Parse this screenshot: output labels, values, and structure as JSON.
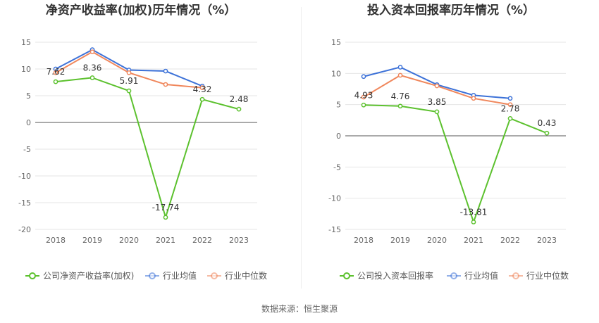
{
  "source": "数据来源：恒生聚源",
  "chart_data": [
    {
      "type": "line",
      "title": "净资产收益率(加权)历年情况（%）",
      "categories": [
        "2018",
        "2019",
        "2020",
        "2021",
        "2022",
        "2023"
      ],
      "ylim": [
        -20,
        15
      ],
      "yticks": [
        15,
        10,
        5,
        0,
        -5,
        -10,
        -15,
        -20
      ],
      "grid": true,
      "legend_placement": "bottom",
      "series": [
        {
          "name": "公司净资产收益率(加权)",
          "color": "#5cc12e",
          "values": [
            7.62,
            8.36,
            5.91,
            -17.74,
            4.32,
            2.48
          ],
          "labels": [
            "7.62",
            "8.36",
            "5.91",
            "-17.74",
            "4.32",
            "2.48"
          ]
        },
        {
          "name": "行业均值",
          "color": "#3d72d8",
          "values": [
            10.0,
            13.6,
            9.8,
            9.6,
            6.8,
            null
          ]
        },
        {
          "name": "行业中位数",
          "color": "#f0875c",
          "values": [
            9.3,
            13.2,
            9.3,
            7.1,
            6.5,
            null
          ]
        }
      ]
    },
    {
      "type": "line",
      "title": "投入资本回报率历年情况（%）",
      "categories": [
        "2018",
        "2019",
        "2020",
        "2021",
        "2022",
        "2023"
      ],
      "ylim": [
        -15,
        15
      ],
      "yticks": [
        15,
        10,
        5,
        0,
        -5,
        -10,
        -15
      ],
      "grid": true,
      "legend_placement": "bottom",
      "series": [
        {
          "name": "公司投入资本回报率",
          "color": "#5cc12e",
          "values": [
            4.93,
            4.76,
            3.85,
            -13.81,
            2.78,
            0.43
          ],
          "labels": [
            "4.93",
            "4.76",
            "3.85",
            "-13.81",
            "2.78",
            "0.43"
          ]
        },
        {
          "name": "行业均值",
          "color": "#3d72d8",
          "values": [
            9.5,
            11.0,
            8.2,
            6.5,
            6.0,
            null
          ]
        },
        {
          "name": "行业中位数",
          "color": "#f0875c",
          "values": [
            6.2,
            9.7,
            8.0,
            6.0,
            5.0,
            null
          ]
        }
      ]
    }
  ]
}
